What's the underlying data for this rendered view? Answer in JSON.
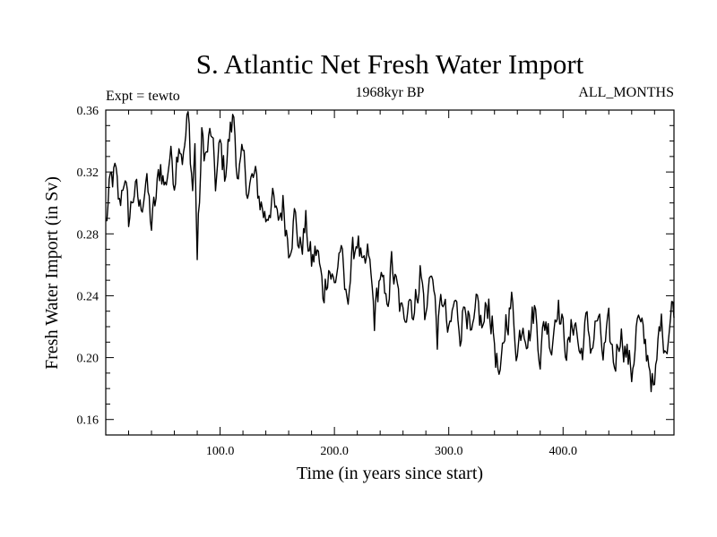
{
  "chart_data": {
    "type": "line",
    "title": "S. Atlantic Net Fresh Water Import",
    "subtitle_left": "Expt = tewto",
    "subtitle_center": "1968kyr BP",
    "subtitle_right": "ALL_MONTHS",
    "xlabel": "Time (in years since start)",
    "ylabel": "Fresh Water Import (in Sv)",
    "xlim": [
      0,
      497
    ],
    "ylim": [
      0.15,
      0.36
    ],
    "xticks": [
      {
        "value": 100,
        "label": "100.0"
      },
      {
        "value": 200,
        "label": "200.0"
      },
      {
        "value": 300,
        "label": "300.0"
      },
      {
        "value": 400,
        "label": "400.0"
      }
    ],
    "yticks": [
      {
        "value": 0.16,
        "label": "0.16"
      },
      {
        "value": 0.2,
        "label": "0.20"
      },
      {
        "value": 0.24,
        "label": "0.24"
      },
      {
        "value": 0.28,
        "label": "0.28"
      },
      {
        "value": 0.32,
        "label": "0.32"
      },
      {
        "value": 0.36,
        "label": "0.36"
      }
    ],
    "series": [
      {
        "name": "Fresh Water Import",
        "color": "#000000",
        "x": [
          0,
          4,
          8,
          12,
          16,
          20,
          25,
          30,
          35,
          40,
          44,
          48,
          52,
          56,
          60,
          64,
          68,
          72,
          76,
          78,
          80,
          84,
          88,
          92,
          96,
          100,
          104,
          108,
          112,
          116,
          120,
          125,
          130,
          135,
          140,
          145,
          150,
          155,
          160,
          165,
          170,
          175,
          180,
          185,
          190,
          195,
          200,
          205,
          210,
          215,
          220,
          225,
          230,
          235,
          240,
          245,
          250,
          255,
          260,
          265,
          270,
          275,
          280,
          285,
          290,
          295,
          300,
          305,
          310,
          315,
          320,
          325,
          330,
          335,
          340,
          345,
          350,
          355,
          360,
          365,
          370,
          375,
          380,
          385,
          390,
          395,
          400,
          405,
          410,
          415,
          420,
          425,
          430,
          435,
          440,
          445,
          450,
          455,
          460,
          465,
          470,
          475,
          480,
          485,
          490,
          495,
          497
        ],
        "y": [
          0.285,
          0.31,
          0.318,
          0.296,
          0.32,
          0.288,
          0.31,
          0.295,
          0.316,
          0.285,
          0.302,
          0.325,
          0.31,
          0.332,
          0.318,
          0.345,
          0.33,
          0.355,
          0.31,
          0.335,
          0.265,
          0.34,
          0.33,
          0.345,
          0.312,
          0.335,
          0.32,
          0.342,
          0.355,
          0.315,
          0.325,
          0.31,
          0.315,
          0.302,
          0.29,
          0.305,
          0.285,
          0.3,
          0.275,
          0.292,
          0.27,
          0.285,
          0.26,
          0.27,
          0.24,
          0.262,
          0.245,
          0.272,
          0.235,
          0.26,
          0.28,
          0.25,
          0.265,
          0.225,
          0.255,
          0.23,
          0.26,
          0.24,
          0.222,
          0.245,
          0.23,
          0.258,
          0.225,
          0.262,
          0.215,
          0.24,
          0.21,
          0.235,
          0.22,
          0.24,
          0.205,
          0.23,
          0.218,
          0.238,
          0.21,
          0.18,
          0.225,
          0.235,
          0.205,
          0.228,
          0.215,
          0.232,
          0.205,
          0.225,
          0.21,
          0.24,
          0.215,
          0.205,
          0.228,
          0.2,
          0.22,
          0.208,
          0.225,
          0.2,
          0.215,
          0.195,
          0.22,
          0.205,
          0.19,
          0.225,
          0.21,
          0.2,
          0.175,
          0.225,
          0.21,
          0.23,
          0.235
        ],
        "style": "noisy"
      }
    ]
  }
}
